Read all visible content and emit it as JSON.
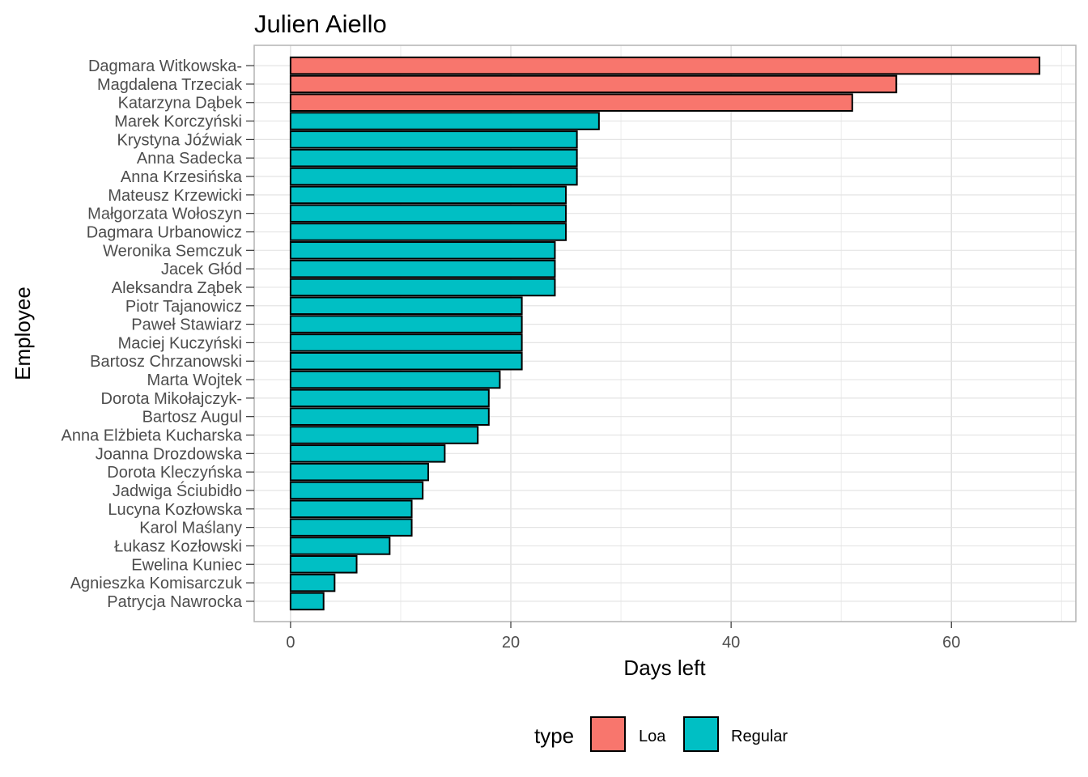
{
  "chart_data": {
    "type": "bar",
    "orientation": "horizontal",
    "title": "Julien Aiello",
    "xlabel": "Days left",
    "ylabel": "Employee",
    "xlim": [
      -3.3,
      71.3
    ],
    "xticks": [
      0,
      20,
      40,
      60
    ],
    "grid": true,
    "legend": {
      "title": "type",
      "position": "bottom",
      "entries": [
        {
          "name": "Loa",
          "color": "#F8766D"
        },
        {
          "name": "Regular",
          "color": "#00BFC4"
        }
      ]
    },
    "bars": [
      {
        "employee": "Dagmara Witkowska-",
        "days": 68,
        "type": "Loa"
      },
      {
        "employee": "Magdalena Trzeciak",
        "days": 55,
        "type": "Loa"
      },
      {
        "employee": "Katarzyna Dąbek",
        "days": 51,
        "type": "Loa"
      },
      {
        "employee": "Marek Korczyński",
        "days": 28,
        "type": "Regular"
      },
      {
        "employee": "Krystyna Jóźwiak",
        "days": 26,
        "type": "Regular"
      },
      {
        "employee": "Anna Sadecka",
        "days": 26,
        "type": "Regular"
      },
      {
        "employee": "Anna Krzesińska",
        "days": 26,
        "type": "Regular"
      },
      {
        "employee": "Mateusz Krzewicki",
        "days": 25,
        "type": "Regular"
      },
      {
        "employee": "Małgorzata Wołoszyn",
        "days": 25,
        "type": "Regular"
      },
      {
        "employee": "Dagmara Urbanowicz",
        "days": 25,
        "type": "Regular"
      },
      {
        "employee": "Weronika Semczuk",
        "days": 24,
        "type": "Regular"
      },
      {
        "employee": "Jacek Głód",
        "days": 24,
        "type": "Regular"
      },
      {
        "employee": "Aleksandra Ząbek",
        "days": 24,
        "type": "Regular"
      },
      {
        "employee": "Piotr Tajanowicz",
        "days": 21,
        "type": "Regular"
      },
      {
        "employee": "Paweł Stawiarz",
        "days": 21,
        "type": "Regular"
      },
      {
        "employee": "Maciej Kuczyński",
        "days": 21,
        "type": "Regular"
      },
      {
        "employee": "Bartosz Chrzanowski",
        "days": 21,
        "type": "Regular"
      },
      {
        "employee": "Marta Wojtek",
        "days": 19,
        "type": "Regular"
      },
      {
        "employee": "Dorota Mikołajczyk-",
        "days": 18,
        "type": "Regular"
      },
      {
        "employee": "Bartosz Augul",
        "days": 18,
        "type": "Regular"
      },
      {
        "employee": "Anna Elżbieta Kucharska",
        "days": 17,
        "type": "Regular"
      },
      {
        "employee": "Joanna Drozdowska",
        "days": 14,
        "type": "Regular"
      },
      {
        "employee": "Dorota Kleczyńska",
        "days": 12.5,
        "type": "Regular"
      },
      {
        "employee": "Jadwiga Ściubidło",
        "days": 12,
        "type": "Regular"
      },
      {
        "employee": "Lucyna Kozłowska",
        "days": 11,
        "type": "Regular"
      },
      {
        "employee": "Karol Maślany",
        "days": 11,
        "type": "Regular"
      },
      {
        "employee": "Łukasz Kozłowski",
        "days": 9,
        "type": "Regular"
      },
      {
        "employee": "Ewelina Kuniec",
        "days": 6,
        "type": "Regular"
      },
      {
        "employee": "Agnieszka Komisarczuk",
        "days": 4,
        "type": "Regular"
      },
      {
        "employee": "Patrycja Nawrocka",
        "days": 3,
        "type": "Regular"
      }
    ]
  }
}
